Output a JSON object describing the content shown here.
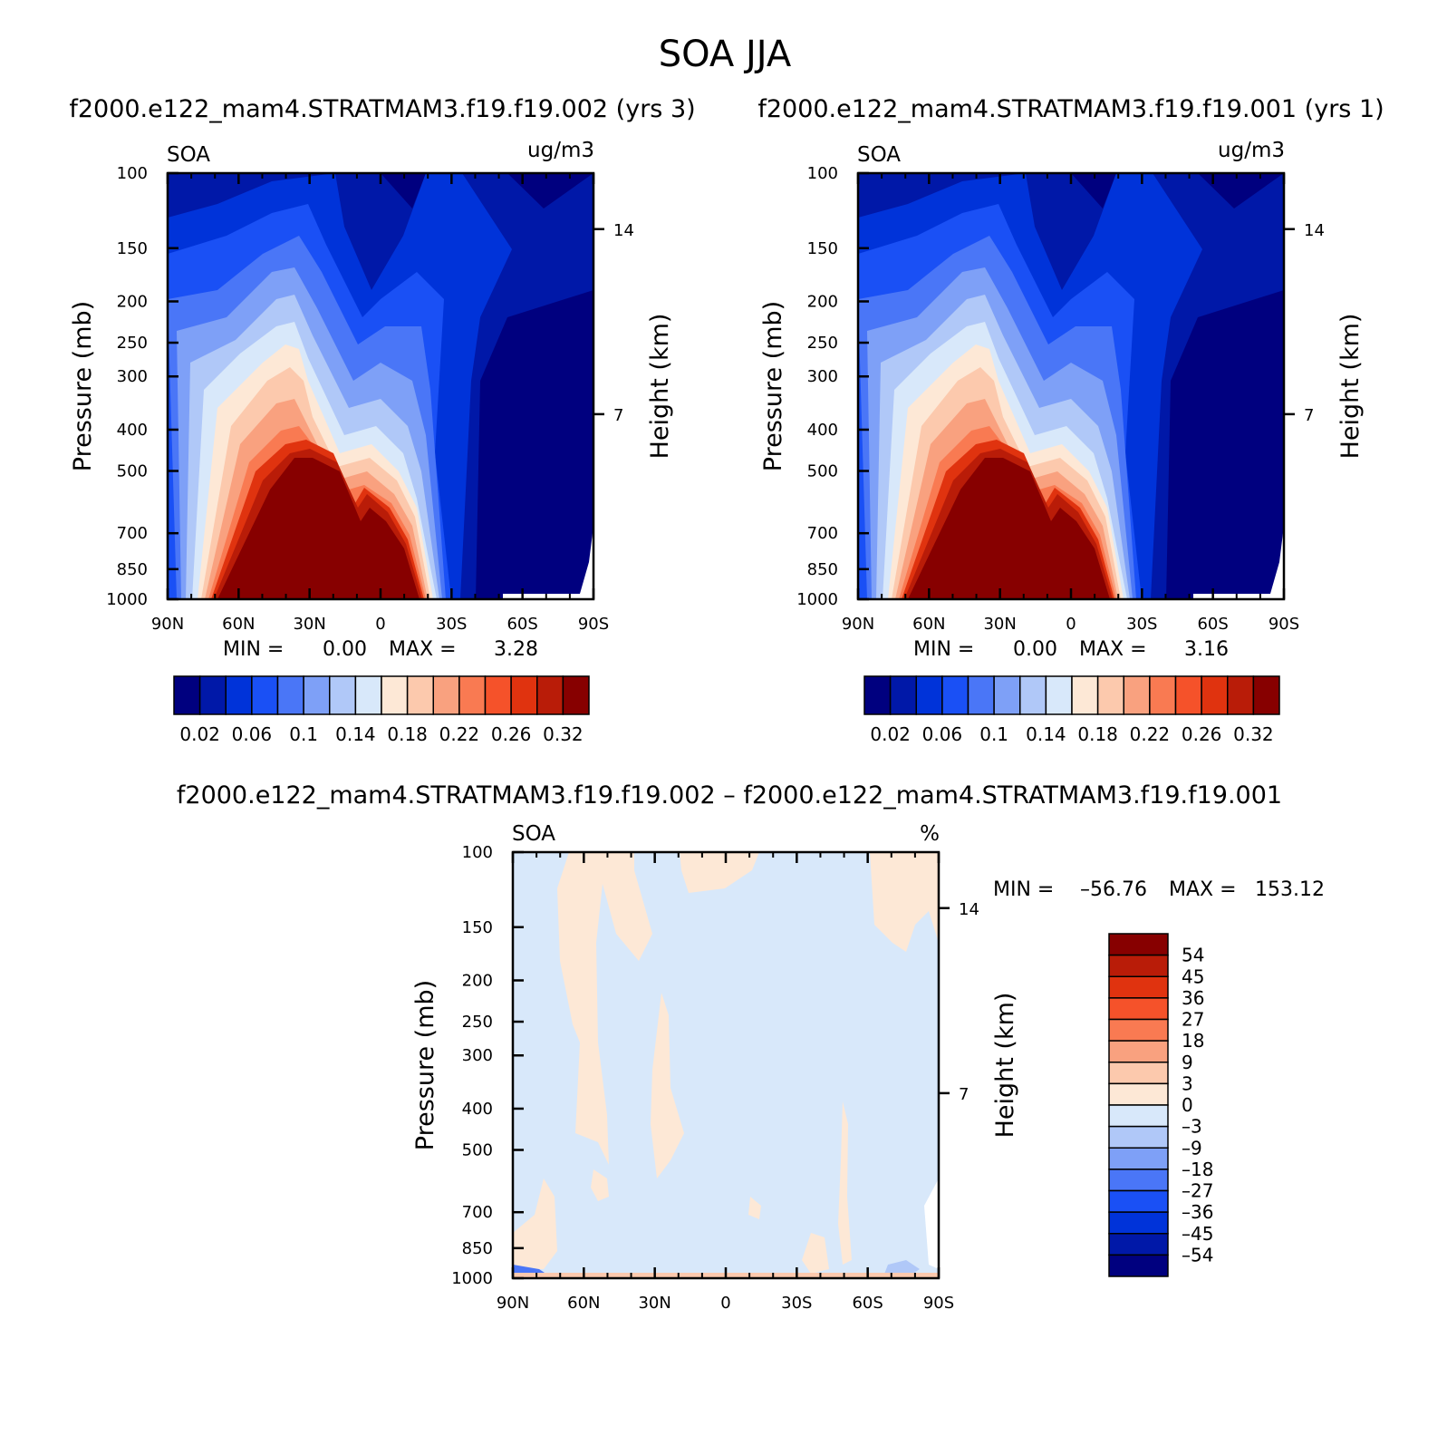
{
  "title": "SOA JJA",
  "chart_data": [
    {
      "type": "heatmap",
      "title": "f2000.e122_mam4.STRATMAM3.f19.f19.002 (yrs 3)",
      "variable": "SOA",
      "units": "ug/m3",
      "ylabel": "Pressure (mb)",
      "ylabel_right": "Height (km)",
      "x_ticks": [
        "90N",
        "60N",
        "30N",
        "0",
        "30S",
        "60S",
        "90S"
      ],
      "x_values": [
        90,
        60,
        30,
        0,
        -30,
        -60,
        -90
      ],
      "y_ticks": [
        "100",
        "150",
        "200",
        "250",
        "300",
        "400",
        "500",
        "700",
        "850",
        "1000"
      ],
      "y_values": [
        100,
        150,
        200,
        250,
        300,
        400,
        500,
        700,
        850,
        1000
      ],
      "right_ticks": [
        "14",
        "7"
      ],
      "right_values": [
        14,
        7
      ],
      "ylim": [
        1000,
        100
      ],
      "xlim": [
        90,
        -90
      ],
      "min_label": "MIN =",
      "min_value": "0.00",
      "max_label": "MAX =",
      "max_value": "3.28",
      "levels": [
        0.02,
        0.04,
        0.06,
        0.08,
        0.1,
        0.12,
        0.14,
        0.16,
        0.18,
        0.2,
        0.22,
        0.24,
        0.26,
        0.28,
        0.32
      ],
      "colorbar_labels": [
        "0.02",
        "0.06",
        "0.1",
        "0.14",
        "0.18",
        "0.22",
        "0.26",
        "0.32"
      ]
    },
    {
      "type": "heatmap",
      "title": "f2000.e122_mam4.STRATMAM3.f19.f19.001 (yrs 1)",
      "variable": "SOA",
      "units": "ug/m3",
      "ylabel": "Pressure (mb)",
      "ylabel_right": "Height (km)",
      "x_ticks": [
        "90N",
        "60N",
        "30N",
        "0",
        "30S",
        "60S",
        "90S"
      ],
      "x_values": [
        90,
        60,
        30,
        0,
        -30,
        -60,
        -90
      ],
      "y_ticks": [
        "100",
        "150",
        "200",
        "250",
        "300",
        "400",
        "500",
        "700",
        "850",
        "1000"
      ],
      "y_values": [
        100,
        150,
        200,
        250,
        300,
        400,
        500,
        700,
        850,
        1000
      ],
      "right_ticks": [
        "14",
        "7"
      ],
      "right_values": [
        14,
        7
      ],
      "ylim": [
        1000,
        100
      ],
      "xlim": [
        90,
        -90
      ],
      "min_label": "MIN =",
      "min_value": "0.00",
      "max_label": "MAX =",
      "max_value": "3.16",
      "levels": [
        0.02,
        0.04,
        0.06,
        0.08,
        0.1,
        0.12,
        0.14,
        0.16,
        0.18,
        0.2,
        0.22,
        0.24,
        0.26,
        0.28,
        0.32
      ],
      "colorbar_labels": [
        "0.02",
        "0.06",
        "0.1",
        "0.14",
        "0.18",
        "0.22",
        "0.26",
        "0.32"
      ]
    },
    {
      "type": "heatmap",
      "title": "f2000.e122_mam4.STRATMAM3.f19.f19.002 – f2000.e122_mam4.STRATMAM3.f19.f19.001",
      "variable": "SOA",
      "units": "%",
      "ylabel": "Pressure (mb)",
      "ylabel_right": "Height (km)",
      "x_ticks": [
        "90N",
        "60N",
        "30N",
        "0",
        "30S",
        "60S",
        "90S"
      ],
      "x_values": [
        90,
        60,
        30,
        0,
        -30,
        -60,
        -90
      ],
      "y_ticks": [
        "100",
        "150",
        "200",
        "250",
        "300",
        "400",
        "500",
        "700",
        "850",
        "1000"
      ],
      "y_values": [
        100,
        150,
        200,
        250,
        300,
        400,
        500,
        700,
        850,
        1000
      ],
      "right_ticks": [
        "14",
        "7"
      ],
      "right_values": [
        14,
        7
      ],
      "ylim": [
        1000,
        100
      ],
      "xlim": [
        90,
        -90
      ],
      "min_label": "MIN =",
      "min_value": "–56.76",
      "max_label": "MAX =",
      "max_value": "153.12",
      "colorbar_labels": [
        "54",
        "45",
        "36",
        "27",
        "18",
        "9",
        "3",
        "0",
        "–3",
        "–9",
        "–18",
        "–27",
        "–36",
        "–45",
        "–54"
      ]
    }
  ],
  "colors": {
    "seq": [
      "#00007f",
      "#0018a8",
      "#0033d9",
      "#1a50f5",
      "#4a76f7",
      "#7ea0f7",
      "#b0c8f8",
      "#d8e8fa",
      "#fde8d6",
      "#fcc9ad",
      "#f9a17f",
      "#f97a52",
      "#f5522a",
      "#e0330f",
      "#b91c08",
      "#870000"
    ],
    "diff": [
      "#870000",
      "#b91c08",
      "#e0330f",
      "#f5522a",
      "#f97a52",
      "#f9a17f",
      "#fcc9ad",
      "#fde8d6",
      "#d8e8fa",
      "#b0c8f8",
      "#7ea0f7",
      "#4a76f7",
      "#1a50f5",
      "#0033d9",
      "#0018a8",
      "#00007f"
    ]
  }
}
